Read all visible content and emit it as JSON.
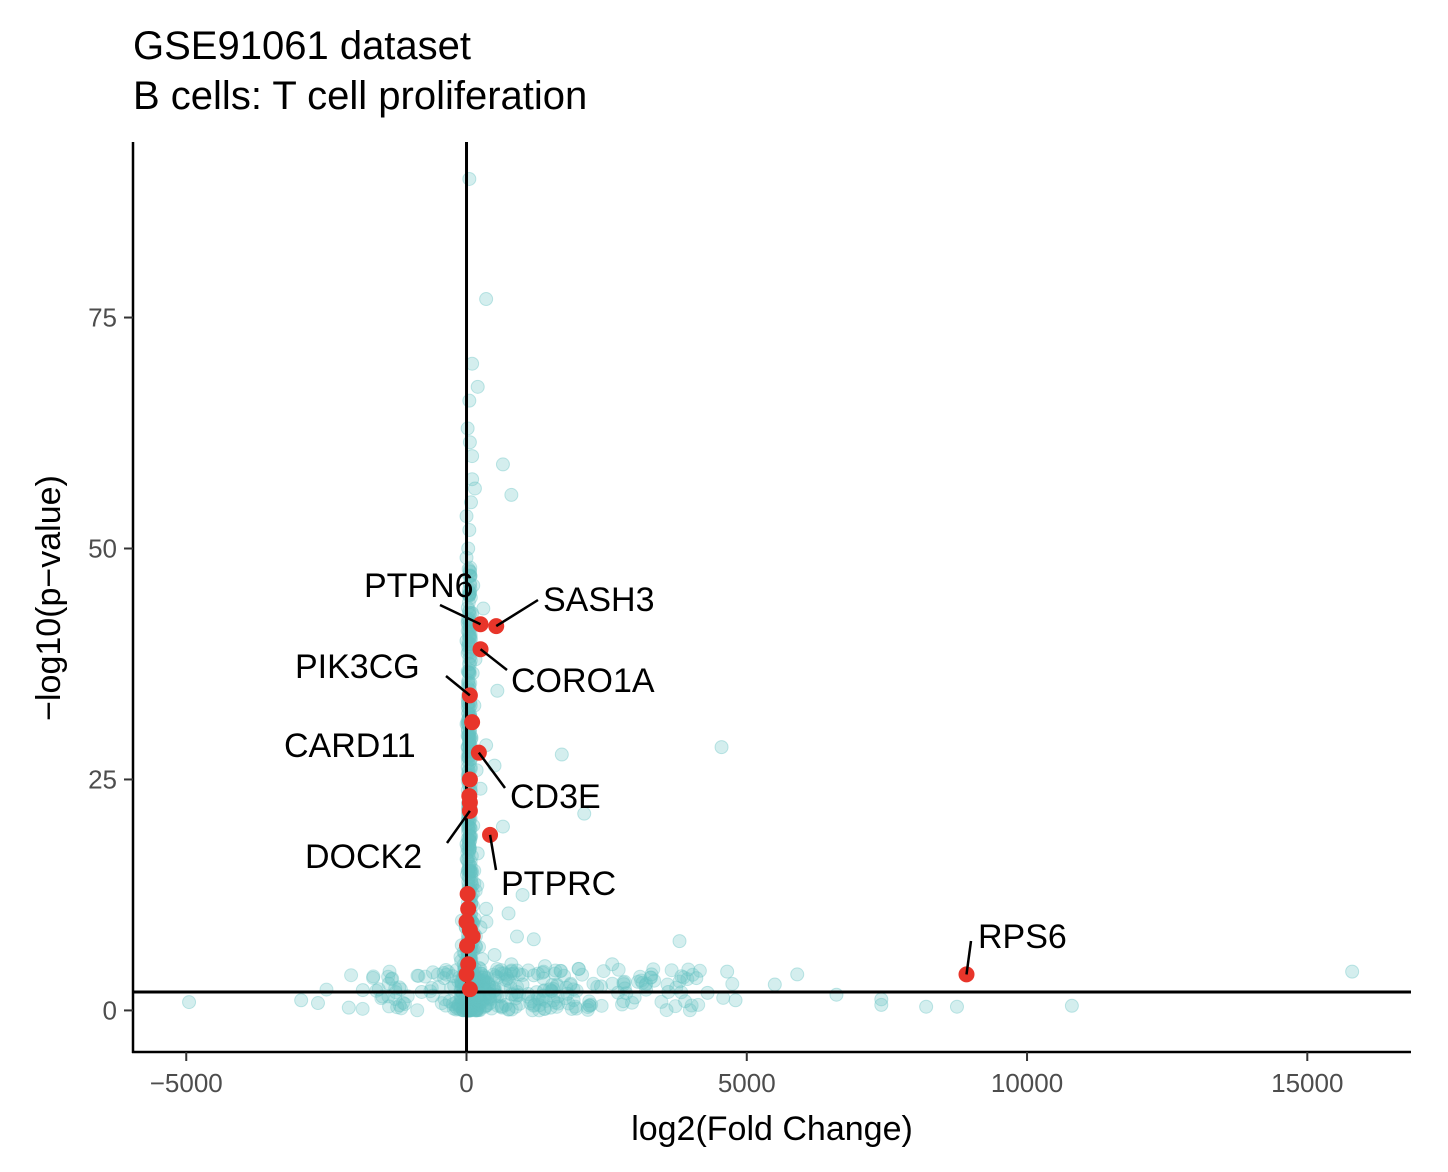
{
  "chart_data": {
    "type": "scatter",
    "title": "GSE91061 dataset",
    "subtitle": "B cells: T cell proliferation",
    "xlabel": "log2(Fold Change)",
    "ylabel": "−log10(p−value)",
    "xlim": [
      -5950,
      16850
    ],
    "ylim": [
      -4.5,
      94
    ],
    "xticks": [
      -5000,
      0,
      5000,
      10000,
      15000
    ],
    "xtick_labels": [
      "−5000",
      "0",
      "5000",
      "10000",
      "15000"
    ],
    "yticks": [
      0,
      25,
      50,
      75
    ],
    "ytick_labels": [
      "0",
      "25",
      "50",
      "75"
    ],
    "reference_lines": {
      "vertical_x": 0,
      "horizontal_y": 2
    },
    "grid": false,
    "colors": {
      "background_points": "#66c2c2",
      "highlight_points": "#e8352a",
      "axis": "#000000"
    },
    "highlighted_genes": [
      {
        "gene": "SASH3",
        "x": 530,
        "y": 41.6
      },
      {
        "gene": "PTPN6",
        "x": 250,
        "y": 41.8
      },
      {
        "gene": "CORO1A",
        "x": 250,
        "y": 39.1
      },
      {
        "gene": "PIK3CG",
        "x": 60,
        "y": 34.1
      },
      {
        "gene": "CARD11",
        "x": 100,
        "y": 31.2
      },
      {
        "gene": "CD3E",
        "x": 220,
        "y": 27.9
      },
      {
        "gene": "DOCK2",
        "x": 60,
        "y": 21.6
      },
      {
        "gene": "PTPRC",
        "x": 420,
        "y": 19.0
      },
      {
        "gene": "RPS6",
        "x": 8920,
        "y": 3.9
      }
    ],
    "other_highlighted": [
      {
        "x": 60,
        "y": 25.0
      },
      {
        "x": 50,
        "y": 23.2
      },
      {
        "x": 60,
        "y": 22.5
      },
      {
        "x": 20,
        "y": 12.6
      },
      {
        "x": 30,
        "y": 11.0
      },
      {
        "x": 0,
        "y": 9.6
      },
      {
        "x": 60,
        "y": 8.7
      },
      {
        "x": 110,
        "y": 8.0
      },
      {
        "x": 10,
        "y": 7.0
      },
      {
        "x": 30,
        "y": 5.0
      },
      {
        "x": 0,
        "y": 3.9
      },
      {
        "x": 60,
        "y": 2.3
      }
    ],
    "background_points": [
      {
        "x": 50,
        "y": 90.0
      },
      {
        "x": 350,
        "y": 77.0
      },
      {
        "x": 100,
        "y": 70.0
      },
      {
        "x": 200,
        "y": 67.5
      },
      {
        "x": 50,
        "y": 66.0
      },
      {
        "x": 20,
        "y": 63.0
      },
      {
        "x": 60,
        "y": 61.5
      },
      {
        "x": 100,
        "y": 60.0
      },
      {
        "x": 650,
        "y": 59.1
      },
      {
        "x": 100,
        "y": 57.5
      },
      {
        "x": 150,
        "y": 56.5
      },
      {
        "x": 800,
        "y": 55.8
      },
      {
        "x": 80,
        "y": 55.0
      },
      {
        "x": 0,
        "y": 53.5
      },
      {
        "x": 50,
        "y": 52.0
      },
      {
        "x": 0,
        "y": 49.0
      },
      {
        "x": 70,
        "y": 47.0
      },
      {
        "x": 40,
        "y": 45.0
      },
      {
        "x": 300,
        "y": 43.5
      },
      {
        "x": 100,
        "y": 43.0
      },
      {
        "x": 0,
        "y": 40.0
      },
      {
        "x": 550,
        "y": 34.6
      },
      {
        "x": 0,
        "y": 31.0
      },
      {
        "x": 350,
        "y": 28.7
      },
      {
        "x": 1700,
        "y": 27.7
      },
      {
        "x": 4550,
        "y": 28.5
      },
      {
        "x": 500,
        "y": 26.5
      },
      {
        "x": 250,
        "y": 24.0
      },
      {
        "x": 2100,
        "y": 21.3
      },
      {
        "x": 650,
        "y": 19.9
      },
      {
        "x": 0,
        "y": 18.0
      },
      {
        "x": 100,
        "y": 15.0
      },
      {
        "x": 1000,
        "y": 12.5
      },
      {
        "x": 350,
        "y": 11.0
      },
      {
        "x": 750,
        "y": 10.5
      },
      {
        "x": 250,
        "y": 9.0
      },
      {
        "x": 900,
        "y": 8.0
      },
      {
        "x": 1200,
        "y": 7.7
      },
      {
        "x": 3800,
        "y": 7.5
      },
      {
        "x": 500,
        "y": 6.0
      },
      {
        "x": 800,
        "y": 5.0
      },
      {
        "x": 1400,
        "y": 4.8
      },
      {
        "x": 2000,
        "y": 4.5
      },
      {
        "x": 2600,
        "y": 5.0
      },
      {
        "x": 1200,
        "y": 3.8
      },
      {
        "x": 3300,
        "y": 3.9
      },
      {
        "x": 4650,
        "y": 4.2
      },
      {
        "x": 5900,
        "y": 3.9
      },
      {
        "x": 15800,
        "y": 4.2
      },
      {
        "x": 4100,
        "y": 3.5
      },
      {
        "x": 5500,
        "y": 2.8
      },
      {
        "x": 3600,
        "y": 2.0
      },
      {
        "x": 4300,
        "y": 1.9
      },
      {
        "x": 6600,
        "y": 1.7
      },
      {
        "x": 7400,
        "y": 1.2
      },
      {
        "x": 7400,
        "y": 0.6
      },
      {
        "x": 8200,
        "y": 0.4
      },
      {
        "x": 8750,
        "y": 0.4
      },
      {
        "x": 10800,
        "y": 0.5
      },
      {
        "x": 2800,
        "y": 1.0
      },
      {
        "x": 2200,
        "y": 0.5
      },
      {
        "x": 1500,
        "y": 0.3
      },
      {
        "x": -4950,
        "y": 0.9
      },
      {
        "x": -2950,
        "y": 1.1
      },
      {
        "x": -2650,
        "y": 0.8
      },
      {
        "x": -2100,
        "y": 0.3
      },
      {
        "x": -1850,
        "y": 2.2
      },
      {
        "x": -1500,
        "y": 1.5
      },
      {
        "x": -1200,
        "y": 2.5
      },
      {
        "x": -1100,
        "y": 0.7
      },
      {
        "x": -800,
        "y": 2.0
      },
      {
        "x": -400,
        "y": 3.5
      },
      {
        "x": -300,
        "y": 1.0
      },
      {
        "x": -150,
        "y": 0.5
      },
      {
        "x": 300,
        "y": 2.5
      },
      {
        "x": 600,
        "y": 1.5
      },
      {
        "x": 1000,
        "y": 2.8
      },
      {
        "x": 1800,
        "y": 1.8
      },
      {
        "x": 2400,
        "y": 2.6
      },
      {
        "x": 3000,
        "y": 1.4
      },
      {
        "x": 3900,
        "y": 1.0
      },
      {
        "x": 4800,
        "y": 1.1
      },
      {
        "x": 200,
        "y": 0.2
      },
      {
        "x": 700,
        "y": 0.6
      },
      {
        "x": 1300,
        "y": 1.2
      },
      {
        "x": -600,
        "y": 1.6
      },
      {
        "x": 150,
        "y": 4.5
      },
      {
        "x": 100,
        "y": 13.5
      },
      {
        "x": 200,
        "y": 17.0
      },
      {
        "x": 120,
        "y": 20.0
      },
      {
        "x": 180,
        "y": 26.0
      },
      {
        "x": 90,
        "y": 29.5
      },
      {
        "x": 140,
        "y": 33.0
      },
      {
        "x": 110,
        "y": 36.5
      },
      {
        "x": 160,
        "y": 38.0
      },
      {
        "x": 60,
        "y": 42.0
      },
      {
        "x": 120,
        "y": 46.0
      },
      {
        "x": 30,
        "y": 50.0
      }
    ]
  }
}
